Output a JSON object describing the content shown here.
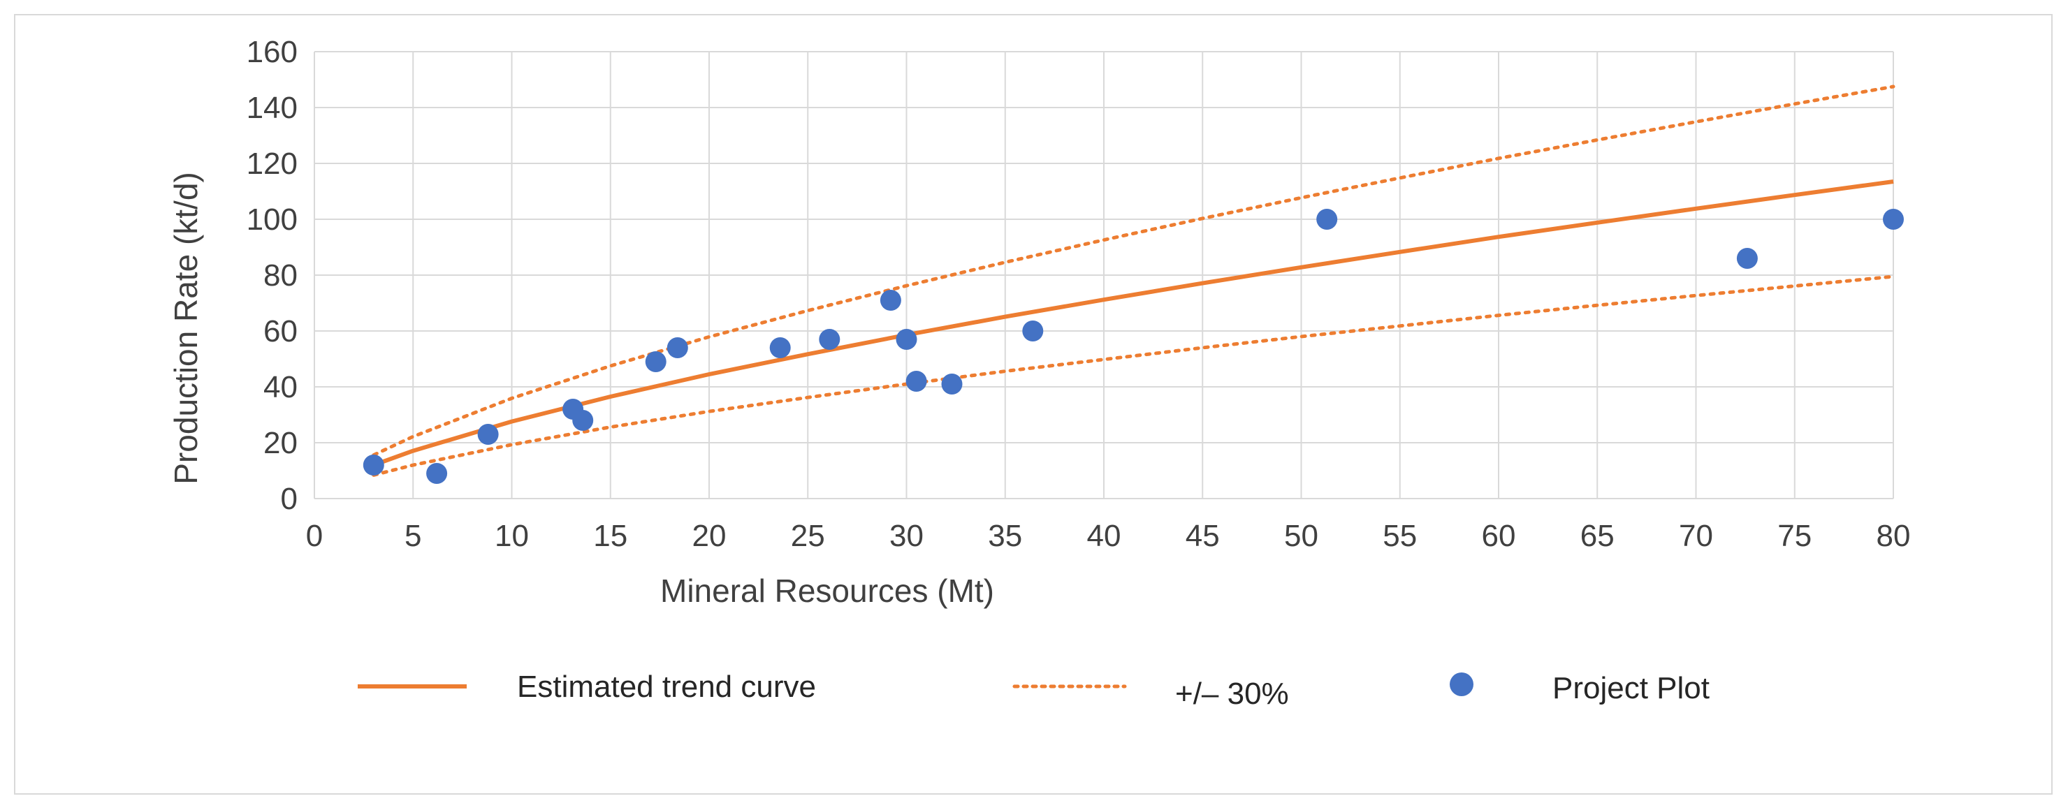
{
  "chart_data": {
    "type": "scatter",
    "title": "",
    "xlabel": "Mineral Resources (Mt)",
    "ylabel": "Production Rate (kt/d)",
    "xlim": [
      0,
      80
    ],
    "ylim": [
      0,
      160
    ],
    "xticks": [
      0,
      5,
      10,
      15,
      20,
      25,
      30,
      35,
      40,
      45,
      50,
      55,
      60,
      65,
      70,
      75,
      80
    ],
    "yticks": [
      0,
      20,
      40,
      60,
      80,
      100,
      120,
      140,
      160
    ],
    "grid": true,
    "legend_position": "bottom",
    "colors": {
      "trend": "#ed7d31",
      "points": "#4472c4",
      "grid": "#d9d9d9",
      "text": "#404040"
    },
    "series": [
      {
        "name": "Estimated trend curve",
        "kind": "line",
        "style": "solid",
        "equation": "y = 5.9 * x^0.672",
        "x": [
          3,
          5,
          10,
          15,
          20,
          25,
          30,
          35,
          40,
          45,
          50,
          55,
          60,
          65,
          70,
          75,
          80
        ],
        "y": [
          12.0,
          17.1,
          27.6,
          36.5,
          44.5,
          51.7,
          58.6,
          65.1,
          71.2,
          77.1,
          82.8,
          88.3,
          93.7,
          98.8,
          103.8,
          108.7,
          113.5
        ]
      },
      {
        "name": "+/– 30%",
        "kind": "line",
        "style": "dotted",
        "bands": [
          {
            "label": "+30%",
            "x": [
              3,
              5,
              10,
              15,
              20,
              25,
              30,
              35,
              40,
              45,
              50,
              55,
              60,
              65,
              70,
              75,
              80
            ],
            "y": [
              15.6,
              22.2,
              35.9,
              47.5,
              57.9,
              67.3,
              76.2,
              84.6,
              92.6,
              100.3,
              107.7,
              114.8,
              121.8,
              128.4,
              134.9,
              141.3,
              147.5
            ]
          },
          {
            "label": "-30%",
            "x": [
              3,
              5,
              10,
              15,
              20,
              25,
              30,
              35,
              40,
              45,
              50,
              55,
              60,
              65,
              70,
              75,
              80
            ],
            "y": [
              8.4,
              12.0,
              19.3,
              25.6,
              31.2,
              36.2,
              41.0,
              45.6,
              49.8,
              54.0,
              58.0,
              61.8,
              65.6,
              69.2,
              72.7,
              76.1,
              79.5
            ]
          }
        ]
      },
      {
        "name": "Project Plot",
        "kind": "scatter",
        "points": [
          [
            3,
            12
          ],
          [
            6.2,
            9
          ],
          [
            8.8,
            23
          ],
          [
            13.1,
            32
          ],
          [
            13.6,
            28
          ],
          [
            17.3,
            49
          ],
          [
            18.4,
            54
          ],
          [
            23.6,
            54
          ],
          [
            26.1,
            57
          ],
          [
            29.2,
            71
          ],
          [
            30,
            57
          ],
          [
            30.5,
            42
          ],
          [
            32.3,
            41
          ],
          [
            36.4,
            60
          ],
          [
            51.3,
            100
          ],
          [
            72.6,
            86
          ],
          [
            80,
            100
          ]
        ]
      }
    ]
  }
}
